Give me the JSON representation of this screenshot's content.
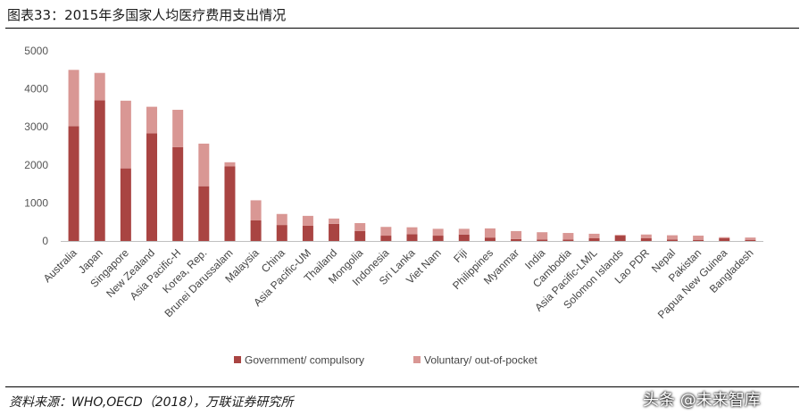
{
  "header": {
    "title": "图表33：2015年多国家人均医疗费用支出情况"
  },
  "footer": {
    "source": "资料来源：WHO,OECD（2018），万联证券研究所",
    "watermark": "头条 @未来智库"
  },
  "chart_data": {
    "type": "bar",
    "stacked": true,
    "title": "",
    "xlabel": "",
    "ylabel": "",
    "ylim": [
      0,
      5000
    ],
    "yticks": [
      0,
      1000,
      2000,
      3000,
      4000,
      5000
    ],
    "grid": false,
    "legend_position": "bottom",
    "categories": [
      "Australia",
      "Japan",
      "Singapore",
      "New Zealand",
      "Asia Pacific-H",
      "Korea, Rep.",
      "Brunei Darussalam",
      "Malaysia",
      "China",
      "Asia Pacific-UM",
      "Thailand",
      "Mongolia",
      "Indonesia",
      "Sri Lanka",
      "Viet Nam",
      "Fiji",
      "Philippines",
      "Myanmar",
      "India",
      "Cambodia",
      "Asia Pacific-LM/L",
      "Solomon Islands",
      "Lao PDR",
      "Nepal",
      "Pakistan",
      "Papua New Guinea",
      "Bangladesh"
    ],
    "series": [
      {
        "name": "Government/ compulsory",
        "color": "#a94442",
        "values": [
          3020,
          3700,
          1910,
          2830,
          2470,
          1440,
          1960,
          540,
          420,
          400,
          450,
          260,
          140,
          180,
          140,
          170,
          90,
          50,
          40,
          40,
          70,
          140,
          70,
          40,
          30,
          70,
          30
        ]
      },
      {
        "name": "Voluntary/ out-of-pocket",
        "color": "#d99794",
        "values": [
          1480,
          720,
          1780,
          700,
          980,
          1120,
          110,
          530,
          290,
          260,
          140,
          210,
          230,
          180,
          180,
          150,
          240,
          210,
          190,
          170,
          120,
          20,
          100,
          110,
          110,
          30,
          60
        ]
      }
    ]
  }
}
